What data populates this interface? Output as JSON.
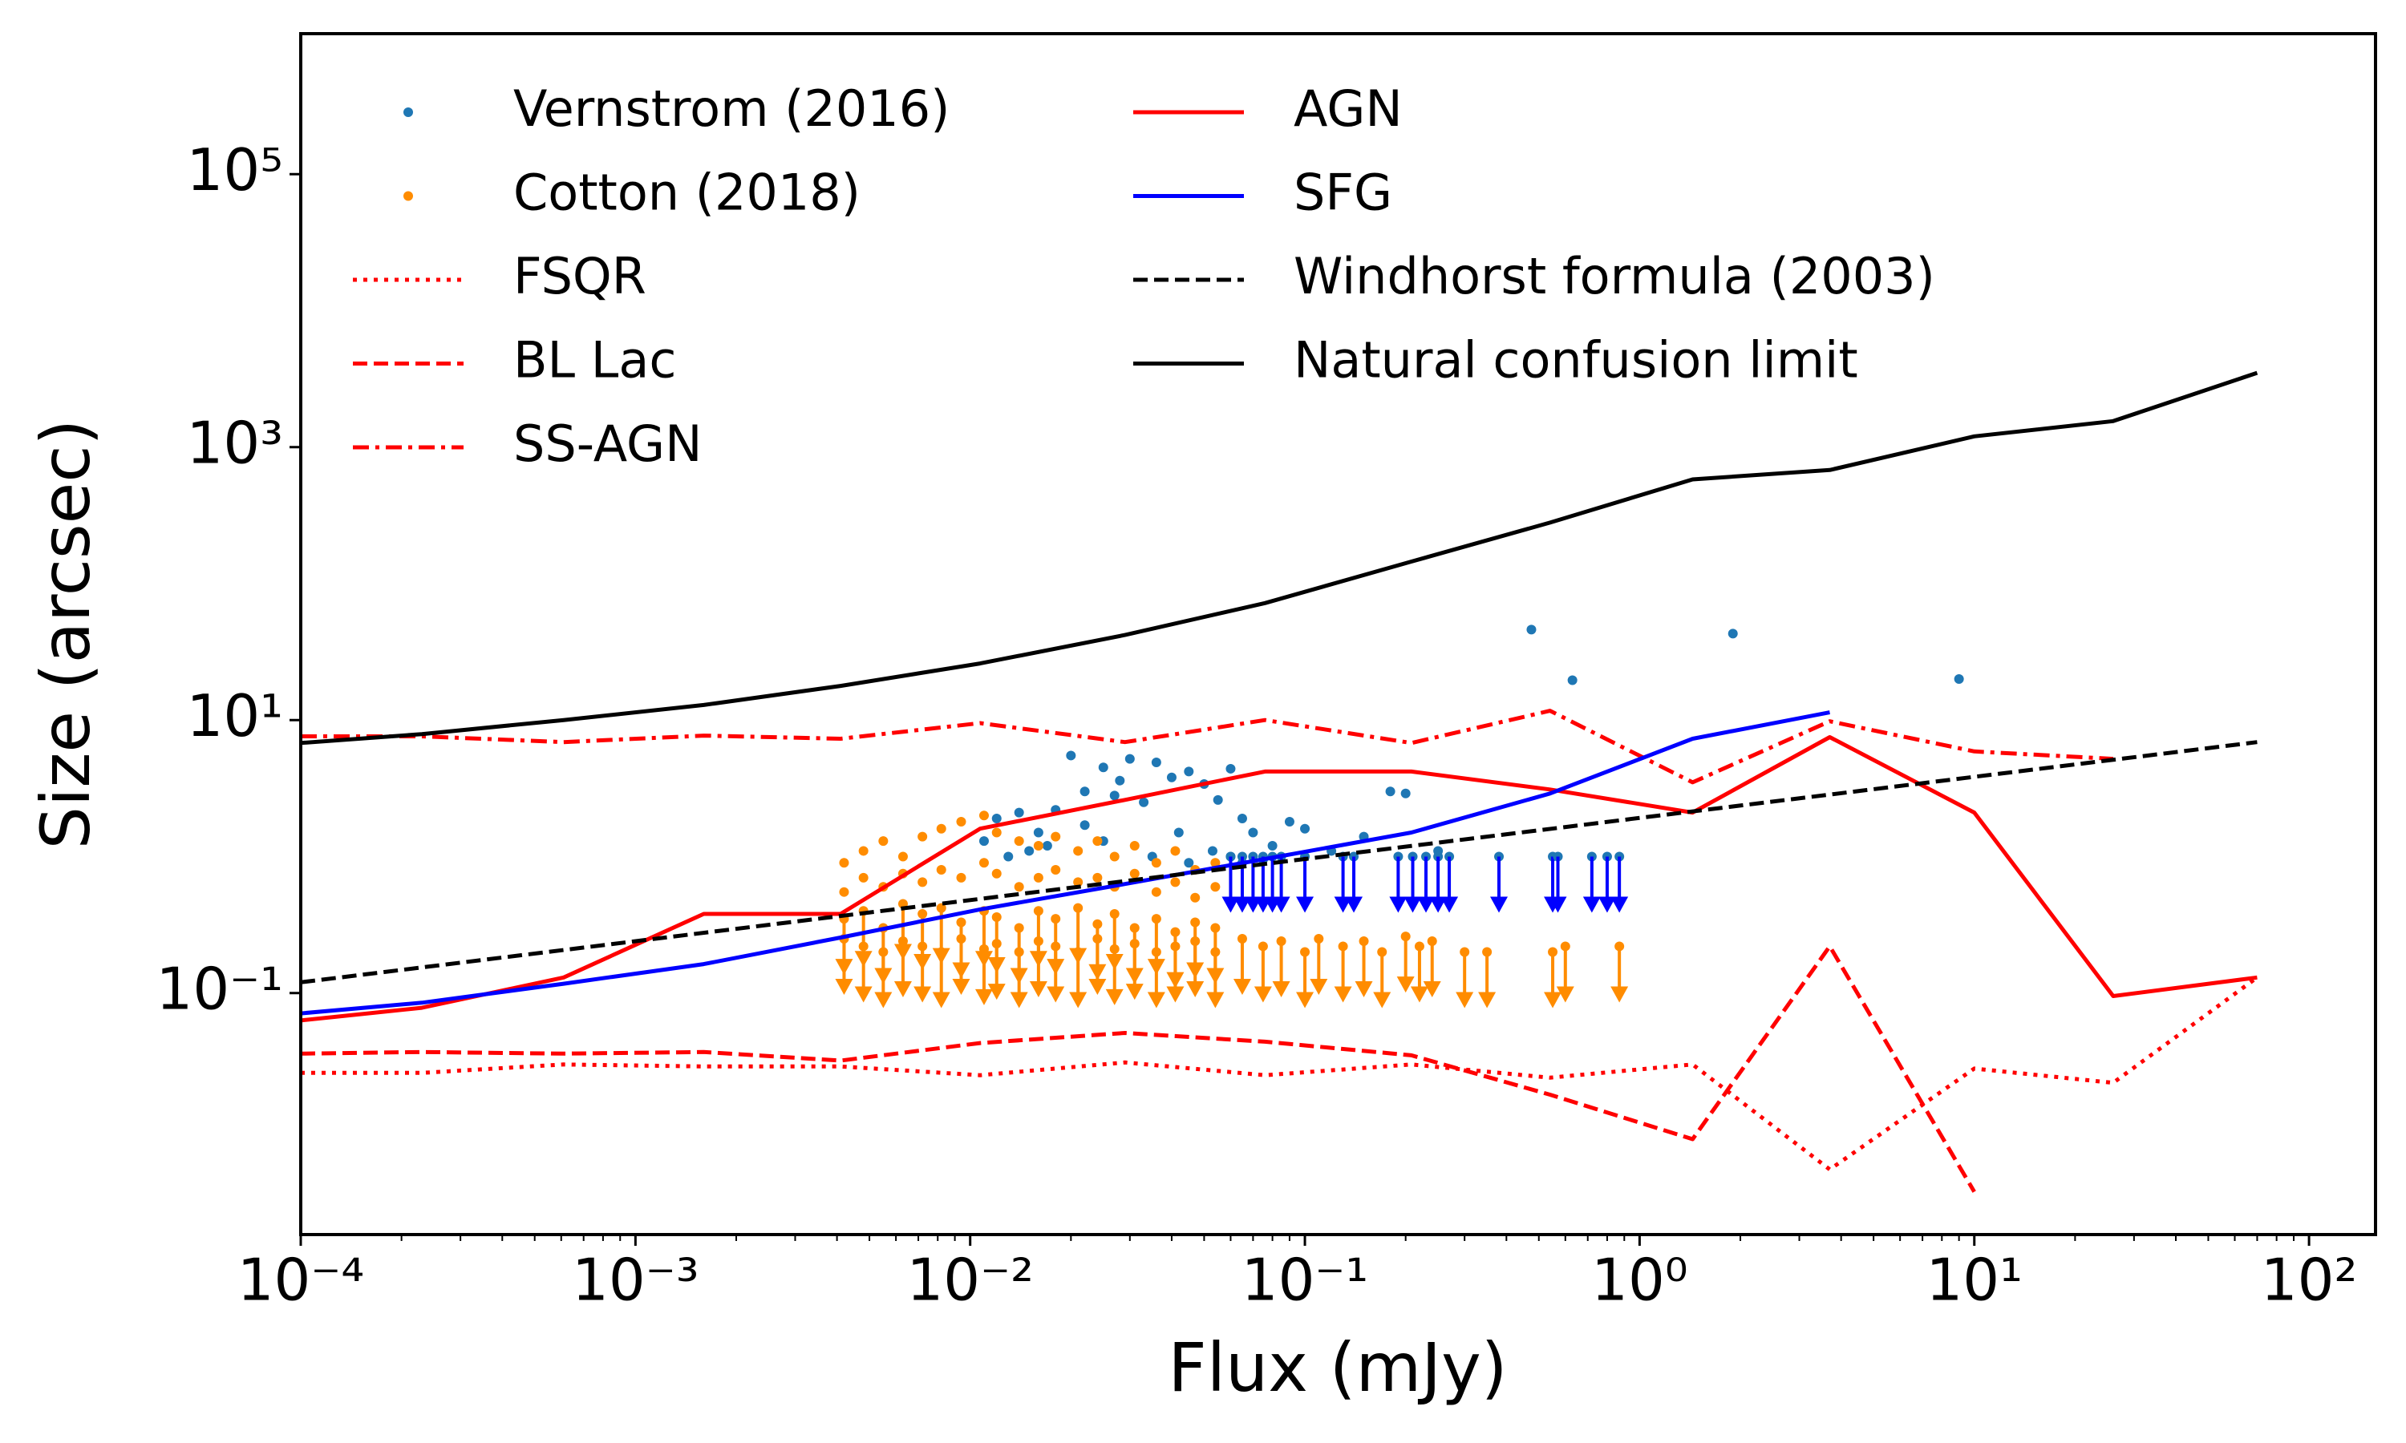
{
  "chart_data": {
    "type": "scatter",
    "xlabel": "Flux (mJy)",
    "ylabel": "Size (arcsec)",
    "xscale": "log",
    "yscale": "log",
    "xlim": [
      0.0001,
      158
    ],
    "ylim": [
      0.0017,
      1070000
    ],
    "xticks": [
      {
        "value": 0.0001,
        "label": "10⁻⁴"
      },
      {
        "value": 0.001,
        "label": "10⁻³"
      },
      {
        "value": 0.01,
        "label": "10⁻²"
      },
      {
        "value": 0.1,
        "label": "10⁻¹"
      },
      {
        "value": 1,
        "label": "10⁰"
      },
      {
        "value": 10,
        "label": "10¹"
      },
      {
        "value": 100,
        "label": "10²"
      }
    ],
    "yticks": [
      {
        "value": 100000,
        "label": "10⁵"
      },
      {
        "value": 1000,
        "label": "10³"
      },
      {
        "value": 10,
        "label": "10¹"
      },
      {
        "value": 0.1,
        "label": "10⁻¹"
      }
    ],
    "legend": "upper left",
    "legend_columns": 2,
    "series": [
      {
        "name": "Vernstrom (2016)",
        "type": "scatter",
        "color": "#1f77b4",
        "limit_color": "#0000ff",
        "x": [
          0.475,
          0.63,
          1.9,
          9.0,
          0.012,
          0.014,
          0.016,
          0.018,
          0.02,
          0.022,
          0.025,
          0.027,
          0.03,
          0.033,
          0.036,
          0.04,
          0.045,
          0.05,
          0.055,
          0.06,
          0.065,
          0.07,
          0.08,
          0.09,
          0.1,
          0.12,
          0.15,
          0.18,
          0.2,
          0.25,
          0.015,
          0.025,
          0.035,
          0.045,
          0.06,
          0.075,
          0.028,
          0.022,
          0.017,
          0.013,
          0.011,
          0.042,
          0.053,
          0.065,
          0.06,
          0.065,
          0.07,
          0.075,
          0.08,
          0.085,
          0.1,
          0.13,
          0.14,
          0.19,
          0.21,
          0.23,
          0.25,
          0.27,
          0.38,
          0.55,
          0.57,
          0.72,
          0.8,
          0.87
        ],
        "values": [
          46,
          19.6,
          43,
          20,
          1.9,
          2.1,
          1.5,
          2.2,
          5.5,
          3.0,
          4.5,
          2.8,
          5.2,
          2.5,
          4.9,
          3.8,
          4.2,
          3.4,
          2.6,
          4.4,
          1.9,
          1.5,
          1.2,
          1.8,
          1.6,
          1.1,
          1.4,
          3.0,
          2.9,
          1.1,
          1.1,
          1.3,
          1.0,
          0.9,
          1.0,
          0.95,
          3.6,
          1.7,
          1.2,
          1.0,
          1.3,
          1.5,
          1.1,
          0.9,
          1.0,
          1.0,
          1.0,
          1.0,
          1.0,
          1.0,
          1.0,
          1.0,
          1.0,
          1.0,
          1.0,
          1.0,
          1.0,
          1.0,
          1.0,
          1.0,
          1.0,
          1.0,
          1.0,
          1.0
        ],
        "upper_limits": [
          false,
          false,
          false,
          false,
          false,
          false,
          false,
          false,
          false,
          false,
          false,
          false,
          false,
          false,
          false,
          false,
          false,
          false,
          false,
          false,
          false,
          false,
          false,
          false,
          false,
          false,
          false,
          false,
          false,
          false,
          false,
          false,
          false,
          false,
          false,
          false,
          false,
          false,
          false,
          false,
          false,
          false,
          false,
          false,
          true,
          true,
          true,
          true,
          true,
          true,
          true,
          true,
          true,
          true,
          true,
          true,
          true,
          true,
          true,
          true,
          true,
          true,
          true,
          true
        ]
      },
      {
        "name": "Cotton (2018)",
        "type": "scatter",
        "color": "#ff8c00",
        "limit_color": "#ff8c00",
        "x": [
          0.0042,
          0.0048,
          0.0055,
          0.0063,
          0.0072,
          0.0082,
          0.0094,
          0.011,
          0.012,
          0.014,
          0.016,
          0.018,
          0.021,
          0.024,
          0.027,
          0.031,
          0.036,
          0.041,
          0.047,
          0.054,
          0.0042,
          0.0048,
          0.0055,
          0.0063,
          0.0072,
          0.0082,
          0.0094,
          0.011,
          0.012,
          0.014,
          0.016,
          0.018,
          0.021,
          0.024,
          0.027,
          0.031,
          0.036,
          0.041,
          0.047,
          0.054,
          0.0042,
          0.0048,
          0.0055,
          0.0063,
          0.0072,
          0.0082,
          0.0094,
          0.011,
          0.012,
          0.014,
          0.016,
          0.018,
          0.021,
          0.024,
          0.027,
          0.031,
          0.036,
          0.041,
          0.047,
          0.054,
          0.0042,
          0.0048,
          0.0055,
          0.0063,
          0.0072,
          0.0082,
          0.0094,
          0.011,
          0.012,
          0.014,
          0.016,
          0.018,
          0.021,
          0.024,
          0.027,
          0.031,
          0.036,
          0.041,
          0.047,
          0.054,
          0.065,
          0.075,
          0.085,
          0.1,
          0.11,
          0.13,
          0.15,
          0.17,
          0.2,
          0.22,
          0.24,
          0.3,
          0.35,
          0.55,
          0.6,
          0.87
        ],
        "values": [
          0.9,
          1.1,
          1.3,
          1.0,
          1.4,
          1.6,
          1.8,
          2.0,
          1.5,
          1.3,
          1.2,
          1.4,
          1.1,
          1.3,
          1.0,
          1.2,
          0.9,
          1.1,
          0.8,
          0.9,
          0.55,
          0.7,
          0.6,
          0.75,
          0.65,
          0.8,
          0.7,
          0.9,
          0.75,
          0.6,
          0.7,
          0.8,
          0.65,
          0.7,
          0.6,
          0.75,
          0.55,
          0.65,
          0.5,
          0.6,
          0.35,
          0.4,
          0.3,
          0.45,
          0.38,
          0.42,
          0.33,
          0.4,
          0.36,
          0.3,
          0.4,
          0.35,
          0.42,
          0.32,
          0.38,
          0.3,
          0.35,
          0.28,
          0.33,
          0.3,
          0.25,
          0.22,
          0.2,
          0.24,
          0.22,
          0.2,
          0.25,
          0.21,
          0.23,
          0.2,
          0.24,
          0.22,
          0.2,
          0.25,
          0.21,
          0.23,
          0.2,
          0.22,
          0.24,
          0.2,
          0.25,
          0.22,
          0.24,
          0.2,
          0.25,
          0.22,
          0.24,
          0.2,
          0.26,
          0.22,
          0.24,
          0.2,
          0.2,
          0.2,
          0.22,
          0.22
        ],
        "upper_limits": [
          false,
          false,
          false,
          false,
          false,
          false,
          false,
          false,
          false,
          false,
          false,
          false,
          false,
          false,
          false,
          false,
          false,
          false,
          false,
          false,
          false,
          false,
          false,
          false,
          false,
          false,
          false,
          false,
          false,
          false,
          false,
          false,
          false,
          false,
          false,
          false,
          false,
          false,
          false,
          false,
          true,
          true,
          true,
          true,
          true,
          true,
          true,
          true,
          true,
          true,
          true,
          true,
          true,
          true,
          true,
          true,
          true,
          true,
          true,
          true,
          true,
          true,
          true,
          true,
          true,
          true,
          true,
          true,
          true,
          true,
          true,
          true,
          true,
          true,
          true,
          true,
          true,
          true,
          true,
          true,
          true,
          true,
          true,
          true,
          true,
          true,
          true,
          true,
          true,
          true,
          true,
          true,
          true,
          true,
          true,
          true
        ]
      },
      {
        "name": "FSQR",
        "type": "line",
        "color": "#ff0000",
        "linestyle": "dotted",
        "x": [
          0.0001,
          0.00023,
          0.00061,
          0.0016,
          0.0041,
          0.0107,
          0.029,
          0.076,
          0.208,
          0.54,
          1.44,
          3.7,
          10,
          26,
          70
        ],
        "values": [
          0.026,
          0.026,
          0.03,
          0.029,
          0.029,
          0.025,
          0.031,
          0.025,
          0.03,
          0.024,
          0.03,
          0.0051,
          0.028,
          0.022,
          0.13
        ]
      },
      {
        "name": "BL Lac",
        "type": "line",
        "color": "#ff0000",
        "linestyle": "dashed",
        "x": [
          0.0001,
          0.00023,
          0.00061,
          0.0016,
          0.0041,
          0.0107,
          0.029,
          0.076,
          0.208,
          0.54,
          1.44,
          3.7,
          10
        ],
        "values": [
          0.036,
          0.037,
          0.036,
          0.037,
          0.032,
          0.043,
          0.051,
          0.044,
          0.035,
          0.018,
          0.0085,
          0.22,
          0.0035
        ]
      },
      {
        "name": "SS-AGN",
        "type": "line",
        "color": "#ff0000",
        "linestyle": "dashdot",
        "x": [
          0.0001,
          0.00023,
          0.00061,
          0.0016,
          0.0041,
          0.0107,
          0.029,
          0.076,
          0.208,
          0.54,
          1.44,
          3.7,
          10,
          26
        ],
        "values": [
          7.6,
          7.6,
          6.9,
          7.7,
          7.3,
          9.5,
          6.9,
          10,
          6.8,
          11.7,
          3.5,
          9.8,
          5.9,
          5.2
        ]
      },
      {
        "name": "AGN",
        "type": "line",
        "color": "#ff0000",
        "linestyle": "solid",
        "x": [
          0.0001,
          0.00023,
          0.00061,
          0.0016,
          0.0041,
          0.0107,
          0.029,
          0.076,
          0.208,
          0.54,
          1.44,
          3.7,
          10,
          26,
          70
        ],
        "values": [
          0.063,
          0.078,
          0.13,
          0.38,
          0.38,
          1.6,
          2.6,
          4.2,
          4.2,
          3.1,
          2.1,
          7.5,
          2.1,
          0.095,
          0.13
        ]
      },
      {
        "name": "SFG",
        "type": "line",
        "color": "#0000ff",
        "linestyle": "solid",
        "x": [
          0.0001,
          0.00023,
          0.00061,
          0.0016,
          0.0041,
          0.0107,
          0.029,
          0.076,
          0.208,
          0.54,
          1.44,
          3.7
        ],
        "values": [
          0.071,
          0.085,
          0.117,
          0.163,
          0.255,
          0.41,
          0.63,
          0.96,
          1.5,
          2.9,
          7.3,
          11.4
        ]
      },
      {
        "name": "Windhorst formula (2003)",
        "type": "line",
        "color": "#000000",
        "linestyle": "dashed",
        "x": [
          0.0001,
          70
        ],
        "values": [
          0.12,
          6.9
        ]
      },
      {
        "name": "Natural confusion limit",
        "type": "line",
        "color": "#000000",
        "linestyle": "solid",
        "x": [
          0.0001,
          0.00023,
          0.00061,
          0.0016,
          0.0041,
          0.0107,
          0.029,
          0.076,
          0.208,
          0.54,
          1.44,
          3.7,
          10,
          26,
          70
        ],
        "values": [
          6.8,
          7.9,
          10,
          12.9,
          17.8,
          26,
          42,
          72,
          145,
          280,
          580,
          680,
          1200,
          1550,
          3500
        ]
      }
    ]
  }
}
